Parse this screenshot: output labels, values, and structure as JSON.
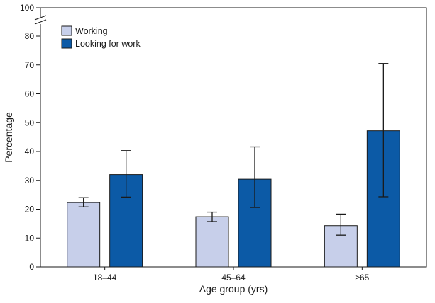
{
  "chart_data": {
    "type": "bar",
    "title": "",
    "xlabel": "Age group (yrs)",
    "ylabel": "Percentage",
    "ylim": [
      0,
      100
    ],
    "axis_break": {
      "from": 80,
      "to": 100
    },
    "yticks": [
      0,
      10,
      20,
      30,
      40,
      50,
      60,
      70,
      80,
      100
    ],
    "categories": [
      "18–44",
      "45–64",
      "≥65"
    ],
    "series": [
      {
        "name": "Working",
        "color": "#c7cfea",
        "values": [
          22.3,
          17.4,
          14.3
        ],
        "ci_low": [
          20.8,
          15.7,
          11.0
        ],
        "ci_high": [
          24.0,
          19.0,
          18.3
        ]
      },
      {
        "name": "Looking for work",
        "color": "#0c5aa6",
        "values": [
          32.0,
          30.4,
          47.2
        ],
        "ci_low": [
          24.2,
          20.6,
          24.3
        ],
        "ci_high": [
          40.3,
          41.6,
          70.5
        ]
      }
    ],
    "legend_position": "top-left",
    "grid": false
  }
}
